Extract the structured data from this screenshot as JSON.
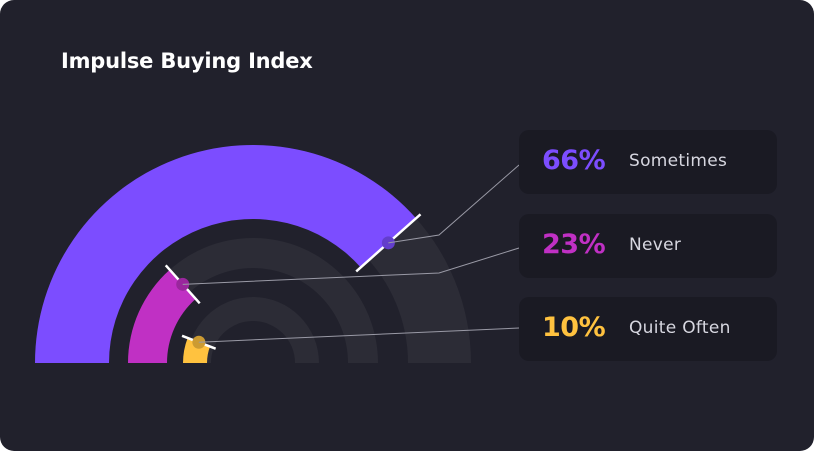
{
  "chart_data": {
    "type": "radial-bar",
    "title": "Impulse Buying Index",
    "series": [
      {
        "name": "Sometimes",
        "value": 66,
        "label": "66%",
        "color": "#7c4dff"
      },
      {
        "name": "Never",
        "value": 23,
        "label": "23%",
        "color": "#c030c4"
      },
      {
        "name": "Quite Often",
        "value": 10,
        "label": "10%",
        "color": "#ffc23f"
      }
    ],
    "track_color": "#2c2c36",
    "background": "#21212c"
  }
}
